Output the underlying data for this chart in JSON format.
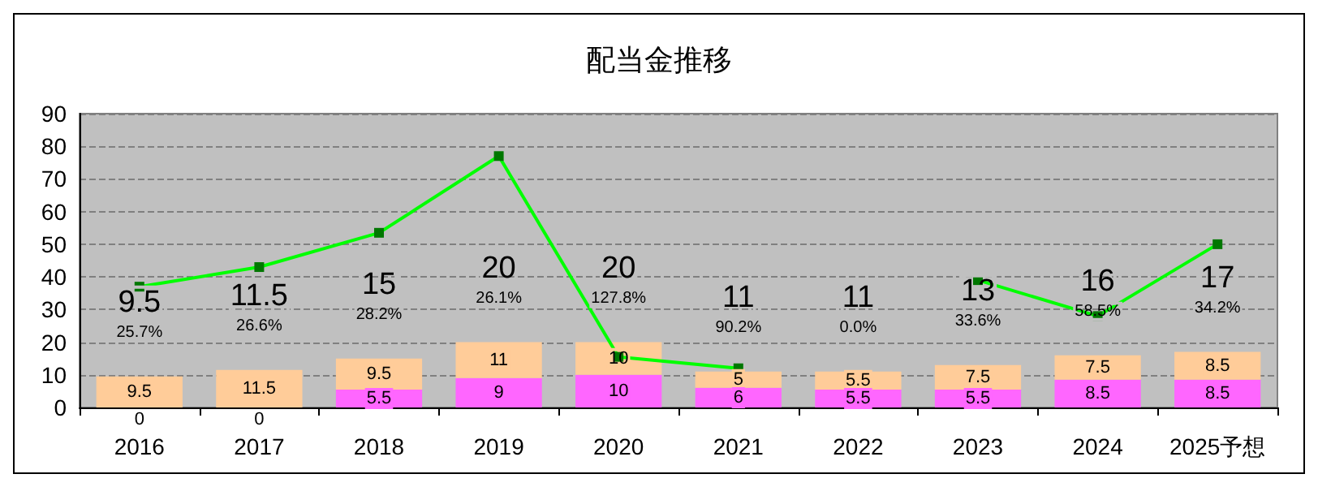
{
  "chart_data": {
    "type": "bar",
    "title": "配当金推移",
    "categories": [
      "2016",
      "2017",
      "2018",
      "2019",
      "2020",
      "2021",
      "2022",
      "2023",
      "2024",
      "2025予想"
    ],
    "stacked": true,
    "grid": "y",
    "marker": "square",
    "ylim": [
      0,
      90
    ],
    "yticks": [
      0,
      10,
      20,
      30,
      40,
      50,
      60,
      70,
      80,
      90
    ],
    "series": [
      {
        "color": "#ff66ff",
        "values": [
          0,
          0,
          5.5,
          9,
          10,
          6,
          5.5,
          5.5,
          8.5,
          8.5
        ],
        "value_labels": [
          "0",
          "0",
          "5.5",
          "9",
          "10",
          "6",
          "5.5",
          "5.5",
          "8.5",
          "8.5"
        ]
      },
      {
        "color": "#ffcc99",
        "values": [
          9.5,
          11.5,
          9.5,
          11,
          10,
          5,
          5.5,
          7.5,
          7.5,
          8.5
        ],
        "value_labels": [
          "9.5",
          "11.5",
          "9.5",
          "11",
          "10",
          "5",
          "5.5",
          "7.5",
          "7.5",
          "8.5"
        ]
      },
      {
        "type": "line",
        "color": "#00ff00",
        "values": [
          37,
          43,
          53.5,
          77,
          15.5,
          12,
          null,
          39,
          28,
          50
        ]
      }
    ],
    "totals": [
      "9.5",
      "11.5",
      "15",
      "20",
      "20",
      "11",
      "11",
      "13",
      "16",
      "17"
    ],
    "annotations": [
      {
        "text": "25.7%",
        "x": "2016",
        "y": 9.5
      },
      {
        "text": "26.6%",
        "x": "2017",
        "y": 11.5
      },
      {
        "text": "28.2%",
        "x": "2018",
        "y": 15
      },
      {
        "text": "26.1%",
        "x": "2019",
        "y": 20
      },
      {
        "text": "127.8%",
        "x": "2020",
        "y": 20
      },
      {
        "text": "90.2%",
        "x": "2021",
        "y": 11
      },
      {
        "text": "0.0%",
        "x": "2022",
        "y": 11
      },
      {
        "text": "33.6%",
        "x": "2023",
        "y": 13
      },
      {
        "text": "58.5%",
        "x": "2024",
        "y": 16
      },
      {
        "text": "34.2%",
        "x": "2025予想",
        "y": 17
      }
    ]
  }
}
